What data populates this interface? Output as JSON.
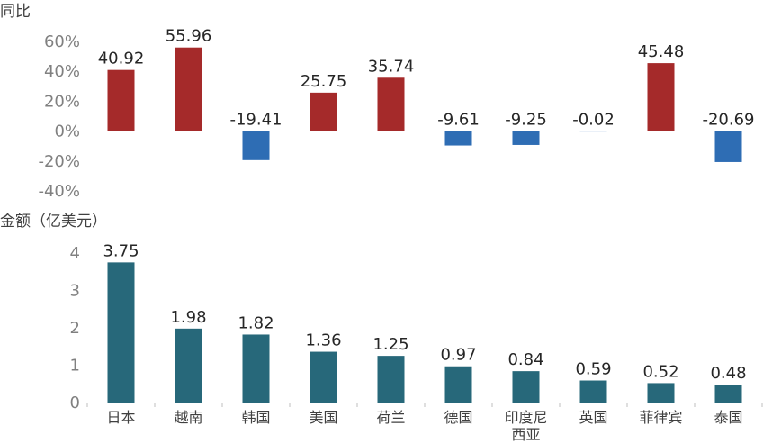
{
  "chart_data": [
    {
      "type": "bar",
      "ylabel": "同比",
      "ylim": [
        -40,
        60
      ],
      "yticks": [
        "60%",
        "40%",
        "20%",
        "0%",
        "-20%",
        "-40%"
      ],
      "categories": [
        "日本",
        "越南",
        "韩国",
        "美国",
        "荷兰",
        "德国",
        "印度尼西亚",
        "英国",
        "菲律宾",
        "泰国"
      ],
      "values": [
        40.92,
        55.96,
        -19.41,
        25.75,
        35.74,
        -9.61,
        -9.25,
        -0.02,
        45.48,
        -20.69
      ],
      "labels": [
        "40.92",
        "55.96",
        "-19.41",
        "25.75",
        "35.74",
        "-9.61",
        "-9.25",
        "-0.02",
        "45.48",
        "-20.69"
      ],
      "positive_color": "#a52a2a",
      "negative_color": "#2e6db4",
      "grid": false
    },
    {
      "type": "bar",
      "ylabel": "金额（亿美元）",
      "ylim": [
        0,
        4
      ],
      "yticks": [
        "4",
        "3",
        "2",
        "1",
        "0"
      ],
      "categories": [
        "日本",
        "越南",
        "韩国",
        "美国",
        "荷兰",
        "德国",
        "印度尼西亚",
        "英国",
        "菲律宾",
        "泰国"
      ],
      "category_lines": [
        [
          "日本"
        ],
        [
          "越南"
        ],
        [
          "韩国"
        ],
        [
          "美国"
        ],
        [
          "荷兰"
        ],
        [
          "德国"
        ],
        [
          "印度尼",
          "西亚"
        ],
        [
          "英国"
        ],
        [
          "菲律宾"
        ],
        [
          "泰国"
        ]
      ],
      "values": [
        3.75,
        1.98,
        1.82,
        1.36,
        1.25,
        0.97,
        0.84,
        0.59,
        0.52,
        0.48
      ],
      "labels": [
        "3.75",
        "1.98",
        "1.82",
        "1.36",
        "1.25",
        "0.97",
        "0.84",
        "0.59",
        "0.52",
        "0.48"
      ],
      "color": "#27687a",
      "grid": false
    }
  ]
}
